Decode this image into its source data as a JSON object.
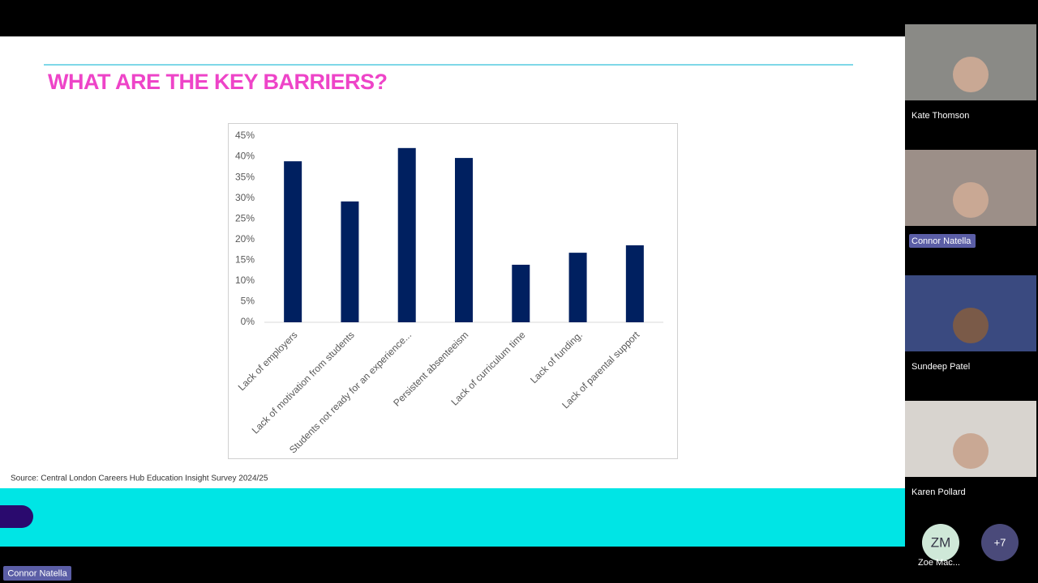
{
  "slide": {
    "title": "WHAT ARE THE KEY BARRIERS?",
    "source": "Source: Central London Careers Hub Education Insight Survey 2024/25"
  },
  "chart_data": {
    "type": "bar",
    "categories": [
      "Lack of employers",
      "Lack of motivation from students",
      "Students not ready for an experience...",
      "Persistent absenteeism",
      "Lack of curriculum time",
      "Lack of funding.",
      "Lack of parental support"
    ],
    "values": [
      38.9,
      29.2,
      42.1,
      39.7,
      13.9,
      16.8,
      18.6
    ],
    "color": "#002060",
    "ylim": [
      0,
      45
    ],
    "yticks": [
      {
        "value": 0,
        "label": "0%"
      },
      {
        "value": 5,
        "label": "5%"
      },
      {
        "value": 10,
        "label": "10%"
      },
      {
        "value": 15,
        "label": "15%"
      },
      {
        "value": 20,
        "label": "20%"
      },
      {
        "value": 25,
        "label": "25%"
      },
      {
        "value": 30,
        "label": "30%"
      },
      {
        "value": 35,
        "label": "35%"
      },
      {
        "value": 40,
        "label": "40%"
      },
      {
        "value": 45,
        "label": "45%"
      }
    ],
    "grid": false
  },
  "participants": [
    {
      "name": "Kate Thomson"
    },
    {
      "name": "Connor Natella"
    },
    {
      "name": "Sundeep Patel"
    },
    {
      "name": "Karen Pollard"
    }
  ],
  "overflow": {
    "initials": "ZM",
    "name": "Zoe Mac...",
    "more": "+7"
  },
  "presenter_label": "Connor Natella"
}
